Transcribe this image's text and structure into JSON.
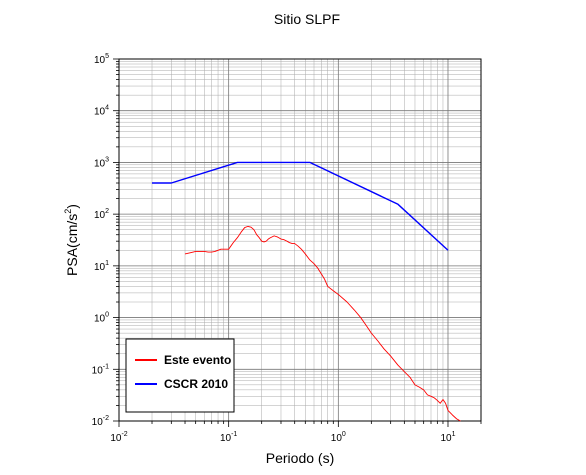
{
  "chart_data": {
    "type": "line",
    "title": "Sitio SLPF",
    "xlabel": "Periodo (s)",
    "ylabel_main": "PSA(cm/s",
    "ylabel_sup": "2",
    "ylabel_close": ")",
    "x_scale": "log",
    "y_scale": "log",
    "xlim": [
      0.01,
      20
    ],
    "ylim": [
      0.01,
      100000
    ],
    "grid": true,
    "legend_position": "bottom-left",
    "x_ticks": [
      {
        "base": "10",
        "exp": "-2",
        "value": 0.01
      },
      {
        "base": "10",
        "exp": "-1",
        "value": 0.1
      },
      {
        "base": "10",
        "exp": "0",
        "value": 1
      },
      {
        "base": "10",
        "exp": "1",
        "value": 10
      }
    ],
    "y_ticks": [
      {
        "base": "10",
        "exp": "-2",
        "value": 0.01
      },
      {
        "base": "10",
        "exp": "-1",
        "value": 0.1
      },
      {
        "base": "10",
        "exp": "0",
        "value": 1
      },
      {
        "base": "10",
        "exp": "1",
        "value": 10
      },
      {
        "base": "10",
        "exp": "2",
        "value": 100
      },
      {
        "base": "10",
        "exp": "3",
        "value": 1000
      },
      {
        "base": "10",
        "exp": "4",
        "value": 10000
      },
      {
        "base": "10",
        "exp": "5",
        "value": 100000
      }
    ],
    "series": [
      {
        "name": "Este evento",
        "color": "#ff0000",
        "x": [
          0.04,
          0.045,
          0.05,
          0.055,
          0.06,
          0.065,
          0.07,
          0.075,
          0.08,
          0.085,
          0.09,
          0.095,
          0.1,
          0.11,
          0.12,
          0.13,
          0.14,
          0.15,
          0.16,
          0.17,
          0.18,
          0.19,
          0.2,
          0.21,
          0.22,
          0.23,
          0.24,
          0.26,
          0.28,
          0.3,
          0.32,
          0.34,
          0.36,
          0.38,
          0.4,
          0.43,
          0.46,
          0.5,
          0.55,
          0.6,
          0.65,
          0.7,
          0.75,
          0.8,
          0.9,
          1.0,
          1.2,
          1.4,
          1.6,
          1.8,
          2.0,
          2.3,
          2.6,
          3.0,
          3.5,
          4.0,
          4.5,
          5.0,
          5.5,
          6.0,
          6.5,
          7.0,
          7.5,
          8.0,
          8.5,
          9.0,
          9.5,
          10.0,
          11.0,
          12.0,
          13.0
        ],
        "y": [
          17,
          18,
          19,
          19,
          19,
          18.5,
          18.5,
          19,
          20,
          21,
          21,
          21,
          21,
          28,
          35,
          45,
          55,
          58,
          56,
          50,
          40,
          35,
          30,
          29,
          30,
          33,
          35,
          38,
          36,
          33,
          32,
          30,
          28,
          27,
          27,
          24,
          21,
          17,
          13,
          11,
          9,
          7,
          5.5,
          4,
          3.3,
          2.8,
          2,
          1.4,
          1,
          0.7,
          0.5,
          0.35,
          0.25,
          0.18,
          0.12,
          0.09,
          0.07,
          0.05,
          0.045,
          0.04,
          0.032,
          0.03,
          0.028,
          0.025,
          0.022,
          0.026,
          0.022,
          0.016,
          0.013,
          0.011,
          0.01
        ]
      },
      {
        "name": "CSCR 2010",
        "color": "#0000ff",
        "x": [
          0.02,
          0.03,
          0.12,
          0.55,
          3.5,
          10
        ],
        "y": [
          400,
          400,
          1000,
          1000,
          155,
          20
        ]
      }
    ]
  }
}
